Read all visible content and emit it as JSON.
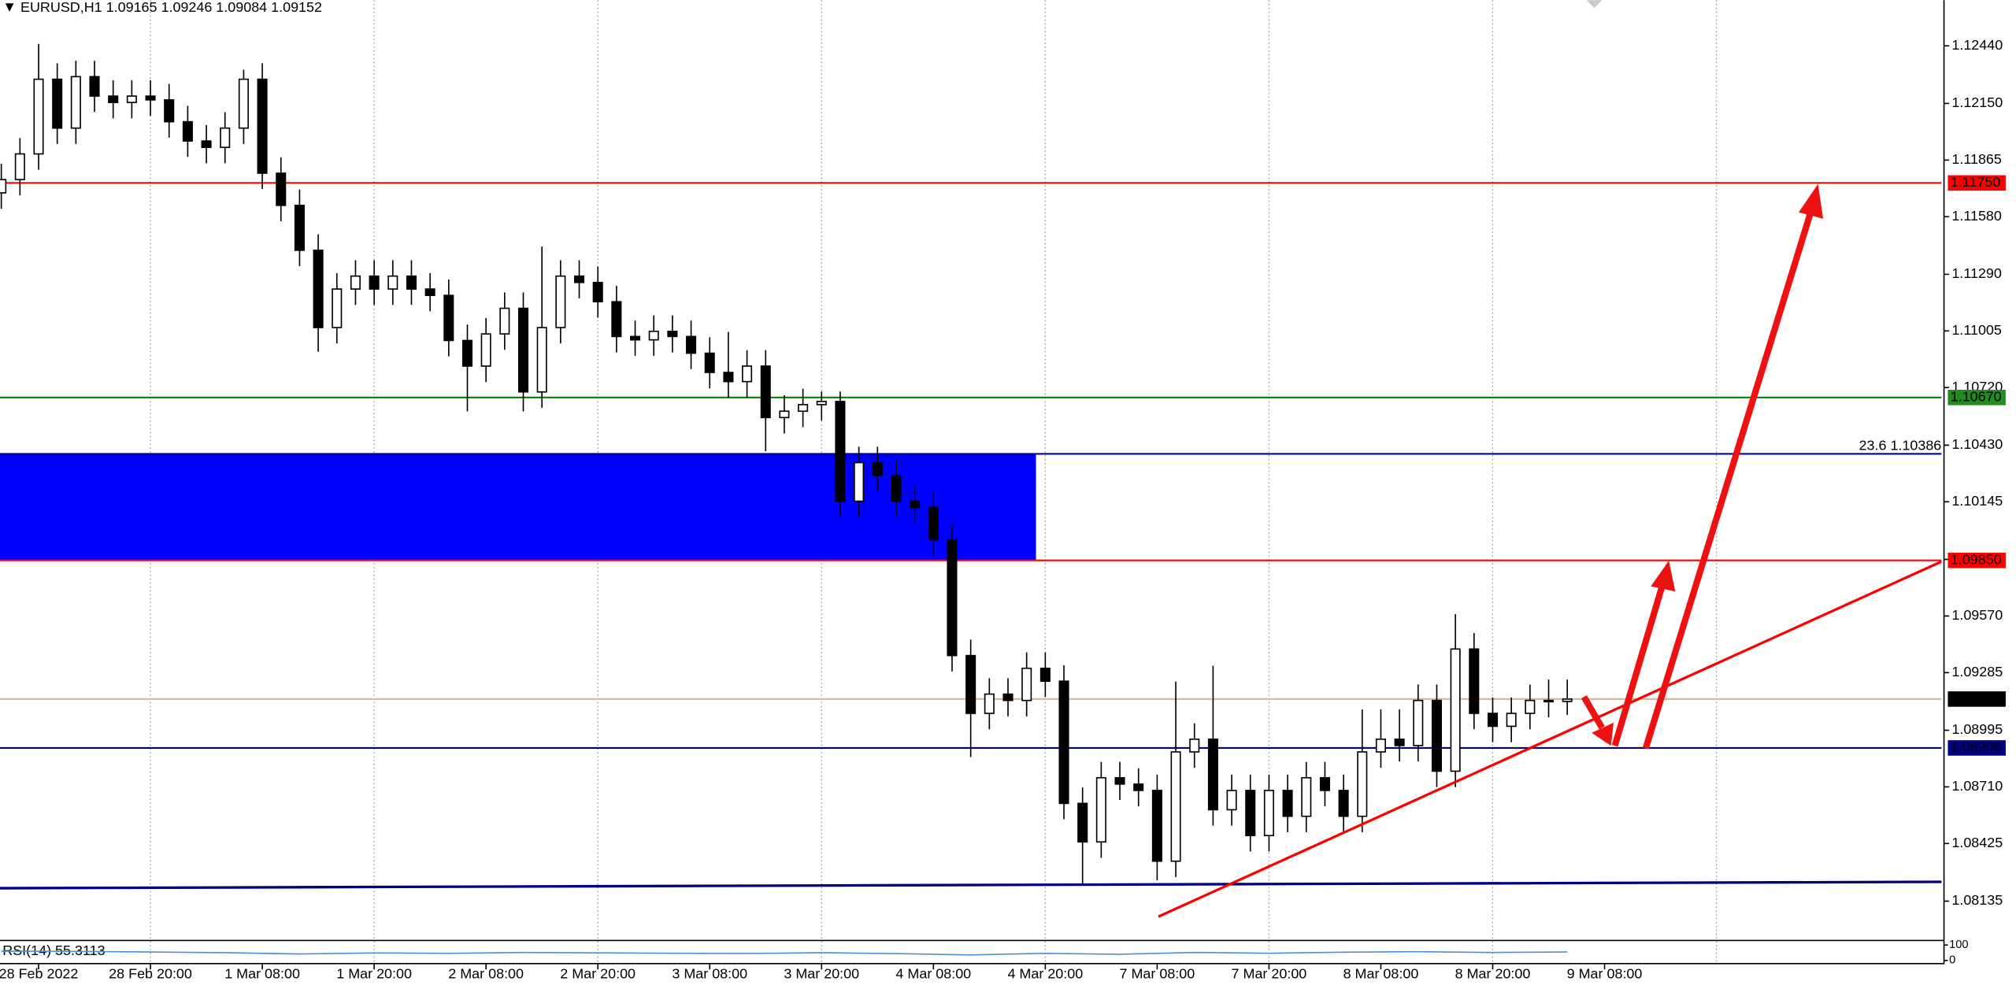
{
  "chart_data": {
    "type": "candlestick",
    "header": {
      "symbol": "EURUSD,H1",
      "ohlc": [
        1.09165,
        1.09246,
        1.09084,
        1.09152
      ]
    },
    "xlim": [
      -0.07,
      104.07
    ],
    "xticks": [
      {
        "value": 2,
        "label": "28 Feb 2022"
      },
      {
        "value": 8,
        "label": "28 Feb 20:00"
      },
      {
        "value": 14,
        "label": "1 Mar 08:00"
      },
      {
        "value": 20,
        "label": "1 Mar 20:00"
      },
      {
        "value": 26,
        "label": "2 Mar 08:00"
      },
      {
        "value": 32,
        "label": "2 Mar 20:00"
      },
      {
        "value": 38,
        "label": "3 Mar 08:00"
      },
      {
        "value": 44,
        "label": "3 Mar 20:00"
      },
      {
        "value": 50,
        "label": "4 Mar 08:00"
      },
      {
        "value": 56,
        "label": "4 Mar 20:00"
      },
      {
        "value": 62,
        "label": "7 Mar 08:00"
      },
      {
        "value": 68,
        "label": "7 Mar 20:00"
      },
      {
        "value": 74,
        "label": "8 Mar 08:00"
      },
      {
        "value": 80,
        "label": "8 Mar 20:00"
      },
      {
        "value": 86,
        "label": "9 Mar 08:00"
      }
    ],
    "xgrid": [
      8,
      20,
      32,
      44,
      56,
      68,
      80,
      92
    ],
    "ylim": [
      1.0794,
      1.1267
    ],
    "yticks": [
      {
        "value": 1.1244,
        "label": "1.12440"
      },
      {
        "value": 1.1215,
        "label": "1.12150"
      },
      {
        "value": 1.11865,
        "label": "1.11865"
      },
      {
        "value": 1.1158,
        "label": "1.11580"
      },
      {
        "value": 1.1129,
        "label": "1.11290"
      },
      {
        "value": 1.11005,
        "label": "1.11005"
      },
      {
        "value": 1.1072,
        "label": "1.10720"
      },
      {
        "value": 1.1043,
        "label": "1.10430"
      },
      {
        "value": 1.10145,
        "label": "1.10145"
      },
      {
        "value": 1.09855,
        "label": "1.09855"
      },
      {
        "value": 1.0957,
        "label": "1.09570"
      },
      {
        "value": 1.09285,
        "label": "1.09285"
      },
      {
        "value": 1.08995,
        "label": "1.08995"
      },
      {
        "value": 1.0871,
        "label": "1.08710"
      },
      {
        "value": 1.08425,
        "label": "1.08425"
      },
      {
        "value": 1.08135,
        "label": "1.08135"
      }
    ],
    "bull_color": "#ffffff",
    "bear_color": "#000000",
    "open": [
      1.117,
      1.11767,
      1.11896,
      1.12272,
      1.12026,
      1.12285,
      1.12187,
      1.12155,
      1.12187,
      1.12168,
      1.12058,
      1.11961,
      1.11929,
      1.12026,
      1.12272,
      1.11799,
      1.11637,
      1.11411,
      1.11022,
      1.11216,
      1.11281,
      1.11216,
      1.11281,
      1.11216,
      1.11184,
      1.10957,
      1.10828,
      1.1099,
      1.11119,
      1.10698,
      1.11022,
      1.11281,
      1.11249,
      1.11152,
      1.10977,
      1.1096,
      1.11003,
      1.10977,
      1.10893,
      1.10796,
      1.1075,
      1.10828,
      1.10569,
      1.10601,
      1.10634,
      1.1065,
      1.10148,
      1.10342,
      1.10278,
      1.10148,
      1.10116,
      1.09954,
      1.09371,
      1.0908,
      1.09177,
      1.09145,
      1.09307,
      1.09242,
      1.08627,
      1.08433,
      1.08756,
      1.08724,
      1.08692,
      1.08336,
      1.08886,
      1.0895,
      1.08595,
      1.08692,
      1.08465,
      1.08692,
      1.08562,
      1.08756,
      1.08692,
      1.08562,
      1.08886,
      1.0895,
      1.08918,
      1.09145,
      1.08789,
      1.09404,
      1.0908,
      1.09015,
      1.0908,
      1.09145,
      1.0914
    ],
    "high": [
      1.11847,
      1.11976,
      1.1245,
      1.12352,
      1.12365,
      1.12365,
      1.12267,
      1.12267,
      1.12267,
      1.12248,
      1.12138,
      1.12041,
      1.12106,
      1.1232,
      1.12352,
      1.11879,
      1.11717,
      1.11491,
      1.11296,
      1.11361,
      1.11361,
      1.11361,
      1.11361,
      1.11296,
      1.11264,
      1.11037,
      1.1107,
      1.11199,
      1.11199,
      1.1143,
      1.11361,
      1.11361,
      1.11329,
      1.11232,
      1.11057,
      1.11083,
      1.11083,
      1.11057,
      1.10973,
      1.11,
      1.10908,
      1.10908,
      1.10681,
      1.10714,
      1.107,
      1.107,
      1.10422,
      1.10422,
      1.10358,
      1.10228,
      1.10196,
      1.10034,
      1.09451,
      1.09257,
      1.09257,
      1.09387,
      1.09387,
      1.09322,
      1.08707,
      1.08836,
      1.08836,
      1.08804,
      1.08772,
      1.0924,
      1.0903,
      1.0932,
      1.08772,
      1.08772,
      1.08772,
      1.08772,
      1.08836,
      1.08836,
      1.08772,
      1.091,
      1.091,
      1.091,
      1.09225,
      1.09225,
      1.0958,
      1.09484,
      1.0916,
      1.0916,
      1.09225,
      1.0925,
      1.0925
    ],
    "low": [
      1.1162,
      1.11687,
      1.11816,
      1.11946,
      1.11946,
      1.12107,
      1.12075,
      1.12075,
      1.12088,
      1.11978,
      1.11881,
      1.11849,
      1.11849,
      1.11946,
      1.11719,
      1.11557,
      1.11331,
      1.109,
      1.10942,
      1.11136,
      1.11136,
      1.11136,
      1.11136,
      1.11104,
      1.10877,
      1.106,
      1.10748,
      1.1091,
      1.106,
      1.10618,
      1.10942,
      1.11169,
      1.11072,
      1.10897,
      1.1088,
      1.1088,
      1.10897,
      1.10813,
      1.10716,
      1.1067,
      1.1067,
      1.104,
      1.10489,
      1.10521,
      1.10554,
      1.10068,
      1.10068,
      1.10198,
      1.10068,
      1.10036,
      1.09874,
      1.09291,
      1.0886,
      1.09,
      1.09065,
      1.09065,
      1.09162,
      1.08547,
      1.0822,
      1.08353,
      1.08644,
      1.08612,
      1.0824,
      1.08256,
      1.08806,
      1.08515,
      1.08515,
      1.08385,
      1.08385,
      1.08482,
      1.08482,
      1.08612,
      1.08482,
      1.08482,
      1.08806,
      1.08838,
      1.08838,
      1.08709,
      1.08709,
      1.09,
      1.08935,
      1.08935,
      1.09,
      1.0906,
      1.09072
    ],
    "close": [
      1.11767,
      1.11896,
      1.12272,
      1.12026,
      1.12285,
      1.12187,
      1.12155,
      1.12187,
      1.12168,
      1.12058,
      1.11961,
      1.11929,
      1.12026,
      1.12272,
      1.11799,
      1.11637,
      1.11411,
      1.11022,
      1.11216,
      1.11281,
      1.11216,
      1.11281,
      1.11216,
      1.11184,
      1.10957,
      1.10828,
      1.1099,
      1.11119,
      1.10698,
      1.11022,
      1.11281,
      1.11249,
      1.11152,
      1.10977,
      1.1096,
      1.11003,
      1.10977,
      1.10893,
      1.10796,
      1.1075,
      1.10828,
      1.10569,
      1.10601,
      1.10634,
      1.1065,
      1.10148,
      1.10342,
      1.10278,
      1.10148,
      1.10116,
      1.09954,
      1.09371,
      1.0908,
      1.09177,
      1.09145,
      1.09307,
      1.09242,
      1.08627,
      1.08433,
      1.08756,
      1.08724,
      1.08692,
      1.08336,
      1.08886,
      1.0895,
      1.08595,
      1.08692,
      1.08465,
      1.08692,
      1.08562,
      1.08756,
      1.08692,
      1.08562,
      1.08886,
      1.0895,
      1.08918,
      1.09145,
      1.08789,
      1.09404,
      1.0908,
      1.09015,
      1.0908,
      1.09145,
      1.0914,
      1.09152
    ],
    "zones": [
      {
        "xlim": [
          -0.07,
          55.5
        ],
        "ylim": [
          1.0985,
          1.10386
        ],
        "color": "#0000ff"
      }
    ],
    "levels": [
      {
        "value": 1.1175,
        "value_label": "1.11750",
        "color": "#ff0000",
        "label_color": "#ff0000"
      },
      {
        "value": 1.1067,
        "value_label": "1.10670",
        "color": "#008000",
        "label_color": "#228b22"
      },
      {
        "value": 1.10386,
        "label": "23.6 1.10386",
        "color": "#00008b"
      },
      {
        "value": 1.0985,
        "value_label": "1.09850",
        "color": "#ff0000",
        "label_color": "#ff0000"
      },
      {
        "value": 1.09152,
        "value_label": "1.09152",
        "color": "#d8b49a",
        "label_color": "#000000"
      },
      {
        "value": 1.08906,
        "value_label": "1.08906",
        "color": "#000080",
        "label_color": "#000080"
      }
    ],
    "trendlines": [
      {
        "x": [
          -0.07,
          104.07
        ],
        "y": [
          1.082,
          1.08232
        ],
        "color": "#000080"
      },
      {
        "x": [
          62.07,
          104.07
        ],
        "y": [
          1.08057,
          1.09844
        ],
        "color": "#ff0000"
      }
    ],
    "rsi": {
      "label": "RSI(14) 55.3113",
      "ylim": [
        0,
        100
      ],
      "yticks": [
        100,
        0
      ],
      "color": "#4a90d9",
      "x": [
        0,
        4,
        8,
        12,
        16,
        20,
        24,
        28,
        32,
        36,
        40,
        44,
        48,
        52,
        56,
        60,
        64,
        68,
        72,
        76,
        80,
        84
      ],
      "values": [
        60,
        58,
        55,
        50,
        42,
        48,
        46,
        52,
        49,
        47,
        45,
        50,
        44,
        36,
        46,
        40,
        52,
        47,
        53,
        57,
        52,
        55
      ]
    }
  }
}
